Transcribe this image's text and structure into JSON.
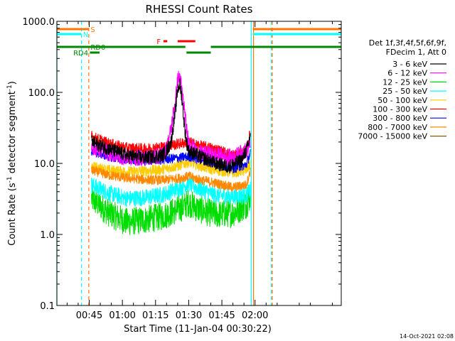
{
  "chart_data": {
    "type": "line",
    "title": "RHESSI Count Rates",
    "xlabel": "Start Time (11-Jan-04 00:30:22)",
    "ylabel": "Count Rate (s",
    "ylabel_sup": "-1",
    "ylabel_mid": " detector segment",
    "ylabel_close": ")",
    "y_scale": "log",
    "ylim": [
      0.1,
      1000
    ],
    "xlim_minutes": [
      0.37,
      129
    ],
    "y_ticks": [
      {
        "v": 0.1,
        "label": "0.1"
      },
      {
        "v": 1,
        "label": "1.0"
      },
      {
        "v": 10,
        "label": "10.0"
      },
      {
        "v": 100,
        "label": "100.0"
      },
      {
        "v": 1000,
        "label": "1000.0"
      }
    ],
    "x_ticks": [
      {
        "t": 15,
        "label": "00:45"
      },
      {
        "t": 30,
        "label": "01:00"
      },
      {
        "t": 45,
        "label": "01:15"
      },
      {
        "t": 60,
        "label": "01:30"
      },
      {
        "t": 75,
        "label": "01:45"
      },
      {
        "t": 90,
        "label": "02:00"
      }
    ],
    "legend_title": [
      "Det 1f,3f,4f,5f,6f,9f,",
      "FDecim 1, Att 0"
    ],
    "series": [
      {
        "name": "3 - 6 keV",
        "color": "#000000",
        "t": [
          16,
          24,
          32,
          40,
          48,
          50,
          52,
          54,
          55,
          56,
          57,
          58,
          59,
          60,
          62,
          64,
          72,
          78,
          81,
          84,
          87,
          88
        ],
        "values": [
          20,
          16,
          13,
          12,
          13,
          15,
          20,
          55,
          110,
          130,
          80,
          35,
          20,
          15,
          14,
          13,
          10,
          9,
          10,
          11,
          18,
          28
        ]
      },
      {
        "name": "6 - 12 keV",
        "color": "#ff00ff",
        "t": [
          16,
          24,
          32,
          40,
          48,
          50,
          52,
          53,
          54,
          55,
          56,
          57,
          58,
          59,
          60,
          62,
          64,
          72,
          80,
          87,
          88
        ],
        "values": [
          17,
          14,
          12,
          12,
          13,
          16,
          30,
          50,
          75,
          150,
          170,
          100,
          60,
          30,
          20,
          16,
          14,
          13,
          12,
          16,
          22
        ]
      },
      {
        "name": "12 - 25 keV",
        "color": "#00dd00",
        "t": [
          16,
          24,
          32,
          40,
          48,
          56,
          60,
          64,
          72,
          80,
          86,
          88
        ],
        "values": [
          3.2,
          2.0,
          1.5,
          1.6,
          1.8,
          2.3,
          2.8,
          2.3,
          1.9,
          2.0,
          2.6,
          3.5
        ]
      },
      {
        "name": "25 - 50 keV",
        "color": "#00ffff",
        "t": [
          16,
          24,
          32,
          40,
          48,
          56,
          60,
          64,
          72,
          80,
          86,
          88
        ],
        "values": [
          5.0,
          3.8,
          3.2,
          3.3,
          3.6,
          4.5,
          5.2,
          4.5,
          3.6,
          3.4,
          3.6,
          4.2
        ]
      },
      {
        "name": "50 - 100 keV",
        "color": "#ffcc00",
        "t": [
          16,
          24,
          32,
          40,
          48,
          56,
          60,
          64,
          72,
          80,
          86,
          88
        ],
        "values": [
          9.0,
          8.0,
          7.6,
          7.8,
          8.2,
          9.5,
          10.5,
          9.5,
          8.0,
          7.5,
          8.0,
          10
        ]
      },
      {
        "name": "100 - 300 keV",
        "color": "#ff0000",
        "t": [
          16,
          24,
          32,
          40,
          48,
          56,
          60,
          64,
          72,
          80,
          86,
          88
        ],
        "values": [
          24,
          19,
          16.5,
          16,
          17,
          19,
          20,
          18,
          16,
          13,
          15,
          28
        ]
      },
      {
        "name": "300 - 800 keV",
        "color": "#0000ff",
        "t": [
          16,
          24,
          32,
          40,
          48,
          56,
          60,
          64,
          72,
          80,
          86,
          88
        ],
        "values": [
          15,
          12.5,
          11.2,
          11,
          11.3,
          12,
          12.5,
          11.5,
          10,
          8.5,
          9.5,
          14
        ]
      },
      {
        "name": "800 - 7000 keV",
        "color": "#ff8800",
        "t": [
          16,
          24,
          32,
          40,
          48,
          56,
          60,
          64,
          72,
          80,
          86,
          88
        ],
        "values": [
          8.0,
          6.8,
          6.2,
          5.9,
          5.8,
          6.2,
          6.6,
          6.0,
          5.3,
          4.6,
          5.0,
          8.0
        ]
      },
      {
        "name": "7000 - 15000 keV",
        "color": "#8b5a00",
        "t": [],
        "values": []
      }
    ],
    "flag_bars": [
      {
        "label": "S",
        "color": "#ff7700",
        "y": 41,
        "segments": [
          [
            0.37,
            14.8
          ],
          [
            89,
            129
          ]
        ],
        "label_t": 15.6
      },
      {
        "label": "N",
        "color": "#00ffff",
        "y": 48,
        "segments": [
          [
            0.37,
            11.5
          ],
          [
            89,
            129
          ]
        ],
        "label_t": 12.2
      },
      {
        "label": "F",
        "color": "#ff0000",
        "y": 58,
        "segments": [
          [
            48.6,
            50.3
          ],
          [
            55,
            63
          ]
        ],
        "label_t": 45.5
      },
      {
        "label": "RD0",
        "color": "#008800",
        "y": 66,
        "segments": [
          [
            0.37,
            58.5
          ],
          [
            70,
            129
          ]
        ],
        "label_t": 15.6
      },
      {
        "label": "RD4",
        "color": "#008800",
        "y": 74,
        "segments": [
          [
            15.3,
            19.7
          ],
          [
            59,
            70
          ]
        ],
        "label_t": 7.8
      }
    ],
    "vlines": [
      {
        "t": 0.37,
        "color": "#00ffff",
        "style": "solid"
      },
      {
        "t": 11.5,
        "color": "#00ffff",
        "style": "dashed"
      },
      {
        "t": 14.8,
        "color": "#ff7700",
        "style": "dashed"
      },
      {
        "t": 88.3,
        "color": "#00ffff",
        "style": "solid"
      },
      {
        "t": 89.3,
        "color": "#ff7700",
        "style": "solid"
      },
      {
        "t": 97.4,
        "color": "#00ffff",
        "style": "dashed"
      },
      {
        "t": 97.8,
        "color": "#ff7700",
        "style": "dashed"
      }
    ],
    "timestamp": "14-Oct-2021 02:08"
  }
}
